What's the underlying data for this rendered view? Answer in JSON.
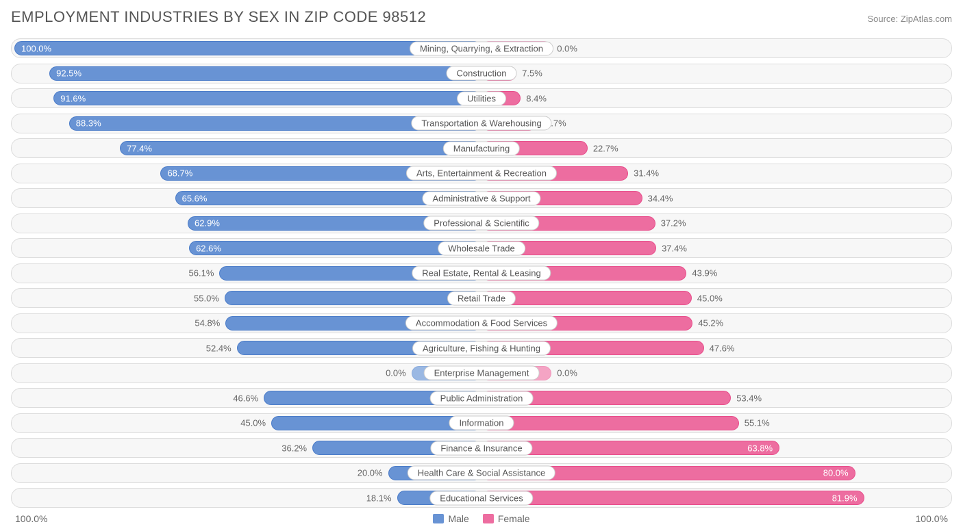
{
  "title": "EMPLOYMENT INDUSTRIES BY SEX IN ZIP CODE 98512",
  "source": "Source: ZipAtlas.com",
  "chart": {
    "type": "diverging-bar",
    "male_color": "#6893d4",
    "male_border": "#4a7bc8",
    "female_color": "#ed6da0",
    "female_border": "#e84c8a",
    "row_bg": "#f7f7f7",
    "row_border": "#dcdcdc",
    "text_color": "#666666",
    "label_bg": "#ffffff",
    "zero_bar_width_pct": 15,
    "axis_left": "100.0%",
    "axis_right": "100.0%",
    "legend": [
      {
        "label": "Male",
        "color": "#6893d4"
      },
      {
        "label": "Female",
        "color": "#ed6da0"
      }
    ],
    "rows": [
      {
        "category": "Mining, Quarrying, & Extraction",
        "male": 100.0,
        "female": 0.0,
        "female_faded": true
      },
      {
        "category": "Construction",
        "male": 92.5,
        "female": 7.5
      },
      {
        "category": "Utilities",
        "male": 91.6,
        "female": 8.4
      },
      {
        "category": "Transportation & Warehousing",
        "male": 88.3,
        "female": 11.7
      },
      {
        "category": "Manufacturing",
        "male": 77.4,
        "female": 22.7
      },
      {
        "category": "Arts, Entertainment & Recreation",
        "male": 68.7,
        "female": 31.4
      },
      {
        "category": "Administrative & Support",
        "male": 65.6,
        "female": 34.4
      },
      {
        "category": "Professional & Scientific",
        "male": 62.9,
        "female": 37.2
      },
      {
        "category": "Wholesale Trade",
        "male": 62.6,
        "female": 37.4
      },
      {
        "category": "Real Estate, Rental & Leasing",
        "male": 56.1,
        "female": 43.9
      },
      {
        "category": "Retail Trade",
        "male": 55.0,
        "female": 45.0
      },
      {
        "category": "Accommodation & Food Services",
        "male": 54.8,
        "female": 45.2
      },
      {
        "category": "Agriculture, Fishing & Hunting",
        "male": 52.4,
        "female": 47.6
      },
      {
        "category": "Enterprise Management",
        "male": 0.0,
        "female": 0.0,
        "male_faded": true,
        "female_faded": true
      },
      {
        "category": "Public Administration",
        "male": 46.6,
        "female": 53.4
      },
      {
        "category": "Information",
        "male": 45.0,
        "female": 55.1
      },
      {
        "category": "Finance & Insurance",
        "male": 36.2,
        "female": 63.8
      },
      {
        "category": "Health Care & Social Assistance",
        "male": 20.0,
        "female": 80.0
      },
      {
        "category": "Educational Services",
        "male": 18.1,
        "female": 81.9
      }
    ]
  }
}
